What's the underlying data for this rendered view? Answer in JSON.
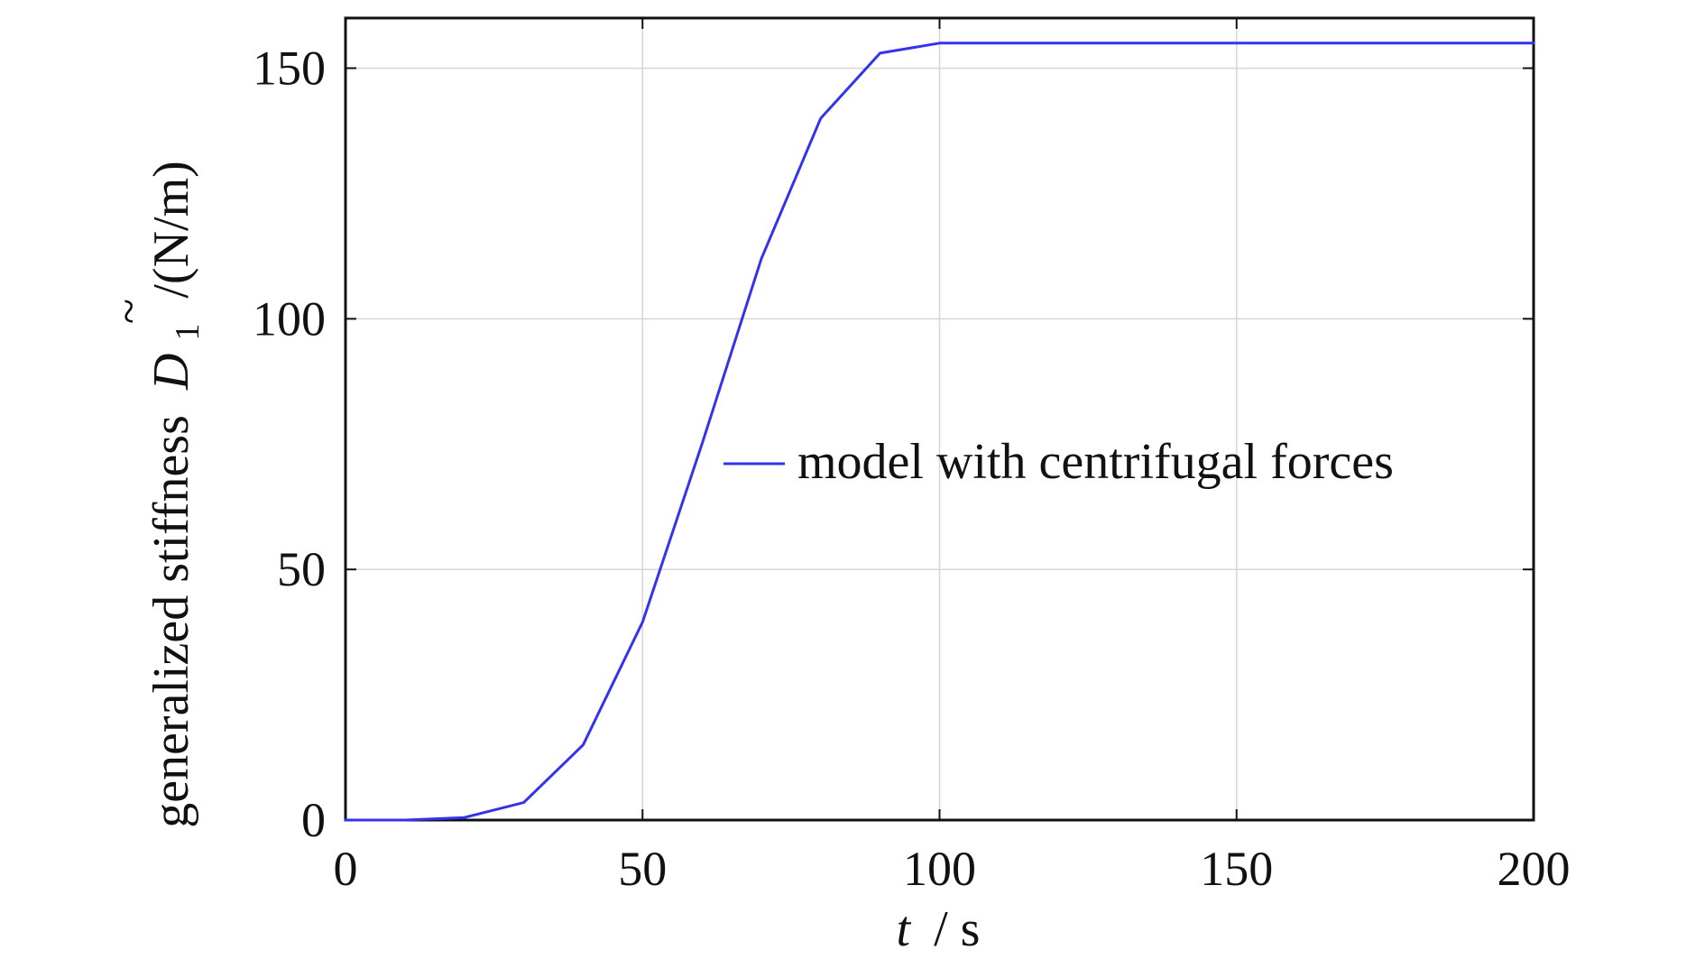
{
  "chart_data": {
    "type": "line",
    "title": "",
    "xlabel": {
      "var": "t",
      "unit": "/ s"
    },
    "ylabel": {
      "prefix": "generalized stiffness",
      "symbol": "D",
      "subscript": "1",
      "accent": "~",
      "unit": "/(N/m)"
    },
    "xlim": [
      0,
      200
    ],
    "ylim": [
      0,
      160
    ],
    "xticks": [
      0,
      50,
      100,
      150,
      200
    ],
    "yticks": [
      0,
      50,
      100,
      150
    ],
    "grid": true,
    "legend": {
      "placement": "center-right"
    },
    "series": [
      {
        "name": "model with centrifugal forces",
        "color": "#3333ee",
        "x": [
          0,
          10,
          20,
          30,
          40,
          50,
          60,
          70,
          80,
          90,
          100,
          110,
          120,
          130,
          140,
          150,
          160,
          170,
          180,
          190,
          200
        ],
        "y": [
          0,
          0,
          0.5,
          3.5,
          15,
          39.5,
          75,
          112,
          140,
          153,
          155,
          155,
          155,
          155,
          155,
          155,
          155,
          155,
          155,
          155,
          155
        ]
      }
    ]
  }
}
